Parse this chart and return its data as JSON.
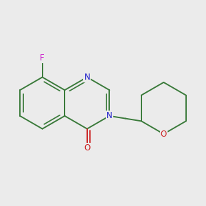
{
  "background_color": "#ebebeb",
  "bond_color": "#3a7a3a",
  "atom_colors": {
    "N": "#2222cc",
    "O": "#cc2222",
    "F": "#cc22cc"
  },
  "figsize": [
    3.0,
    3.0
  ],
  "dpi": 100,
  "bond_lw": 1.4,
  "font_size": 8.5
}
